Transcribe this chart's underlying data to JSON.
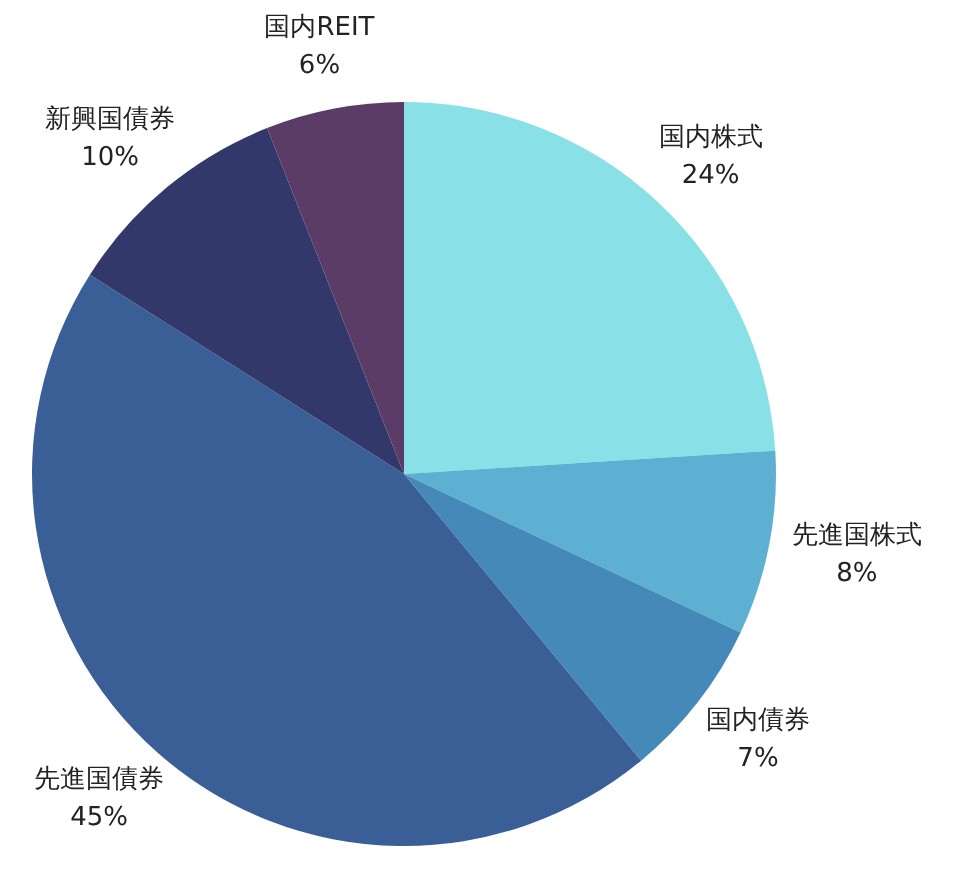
{
  "chart_data": {
    "type": "pie",
    "categories": [
      "国内株式",
      "先進国株式",
      "国内債券",
      "先進国債券",
      "新興国債券",
      "国内REIT"
    ],
    "values": [
      24,
      8,
      7,
      45,
      10,
      6
    ],
    "colors": [
      "#89e0e6",
      "#5db0d2",
      "#4589b8",
      "#3a5e96",
      "#33386a",
      "#5a3c66"
    ],
    "value_labels": [
      "24%",
      "8%",
      "7%",
      "45%",
      "10%",
      "6%"
    ]
  }
}
